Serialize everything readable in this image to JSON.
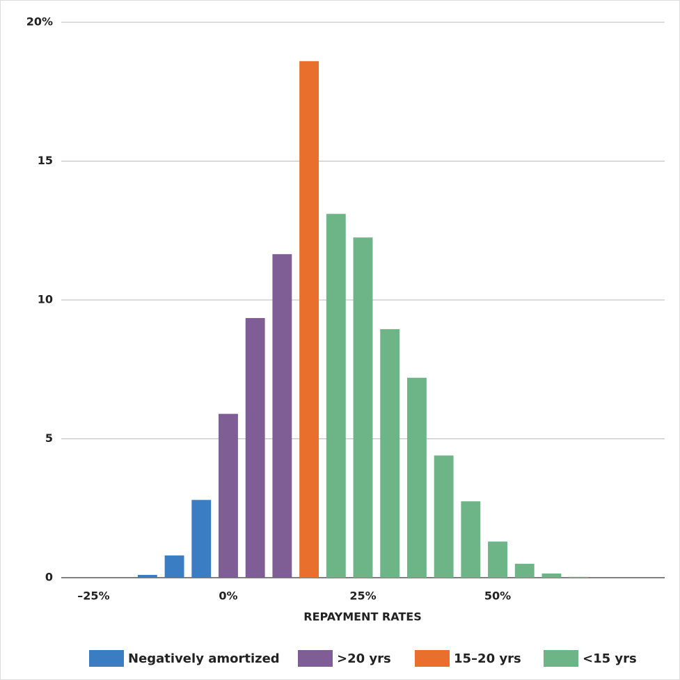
{
  "chart_data": {
    "type": "histogram",
    "x_label": "REPAYMENT RATES",
    "bins": [
      -17.5,
      -12.5,
      -7.5,
      -2.5,
      2.5,
      7.5,
      12.5,
      17.5,
      22.5,
      27.5,
      32.5,
      37.5,
      42.5,
      47.5,
      52.5,
      57.5,
      62.5,
      67.5
    ],
    "series": [
      {
        "name": "Negatively amortized",
        "color": "#3a7dc2",
        "values": [
          0.1,
          0.8,
          2.8,
          null,
          null,
          null,
          null,
          null,
          null,
          null,
          null,
          null,
          null,
          null,
          null,
          null,
          null
        ]
      },
      {
        "name": ">20 yrs",
        "color": "#7f5e96",
        "values": [
          null,
          null,
          null,
          5.9,
          9.35,
          11.65,
          null,
          null,
          null,
          null,
          null,
          null,
          null,
          null,
          null,
          null,
          null
        ]
      },
      {
        "name": "15–20 yrs",
        "color": "#e8702c",
        "values": [
          null,
          null,
          null,
          null,
          null,
          null,
          18.6,
          null,
          null,
          null,
          null,
          null,
          null,
          null,
          null,
          null,
          null
        ]
      },
      {
        "name": "<15 yrs",
        "color": "#6db487",
        "values": [
          null,
          null,
          null,
          null,
          null,
          null,
          null,
          13.1,
          12.25,
          8.95,
          7.2,
          4.4,
          2.75,
          1.3,
          0.5,
          0.15,
          0.03
        ]
      }
    ],
    "xlim": [
      -31,
      81
    ],
    "xticks": [
      {
        "value": -25,
        "label": "–25%"
      },
      {
        "value": 0,
        "label": "0%"
      },
      {
        "value": 25,
        "label": "25%"
      },
      {
        "value": 50,
        "label": "50%"
      }
    ],
    "ylim": [
      0,
      20
    ],
    "yticks": [
      0,
      5,
      10,
      15,
      {
        "value": 20,
        "label": "20%"
      }
    ],
    "grid": true
  }
}
